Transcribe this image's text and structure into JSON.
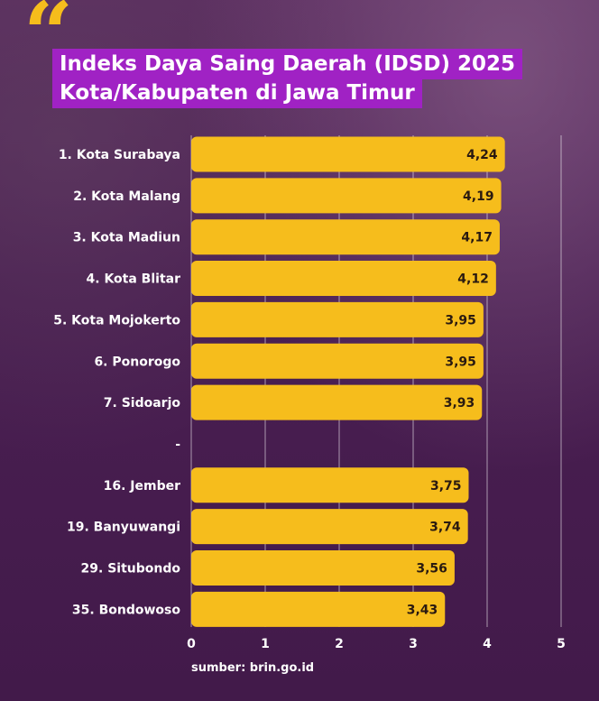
{
  "title_line1": "Indeks Daya Saing Daerah (IDSD) 2025",
  "title_line2": "Kota/Kabupaten di Jawa Timur",
  "source": "sumber: brin.go.id",
  "colors": {
    "bar": "#f6bd1c",
    "title_bg": "#a022c4",
    "quote": "#f6bd1c",
    "background": "#4a1f52"
  },
  "chart_data": {
    "type": "bar",
    "orientation": "horizontal",
    "categories": [
      "1. Kota Surabaya",
      "2. Kota Malang",
      "3. Kota Madiun",
      "4. Kota Blitar",
      "5. Kota Mojokerto",
      "6. Ponorogo",
      "7. Sidoarjo",
      "-",
      "16. Jember",
      "19. Banyuwangi",
      "29. Situbondo",
      "35. Bondowoso"
    ],
    "values": [
      4.24,
      4.19,
      4.17,
      4.12,
      3.95,
      3.95,
      3.93,
      null,
      3.75,
      3.74,
      3.56,
      3.43
    ],
    "value_labels": [
      "4,24",
      "4,19",
      "4,17",
      "4,12",
      "3,95",
      "3,95",
      "3,93",
      "",
      "3,75",
      "3,74",
      "3,56",
      "3,43"
    ],
    "x_ticks": [
      "0",
      "1",
      "2",
      "3",
      "4",
      "5"
    ],
    "xlim": [
      0,
      5
    ],
    "grid": true,
    "legend": "none"
  }
}
